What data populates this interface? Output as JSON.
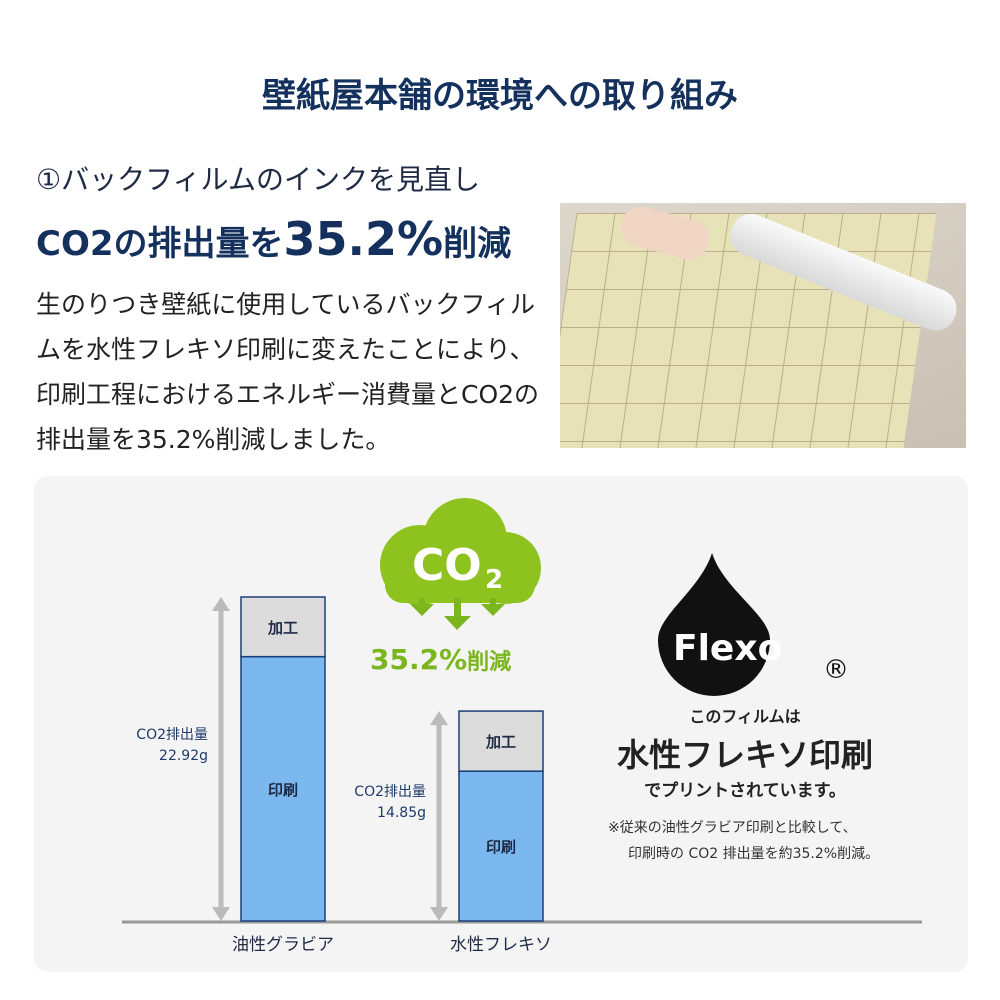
{
  "header": {
    "title": "壁紙屋本舗の環境への取り組み"
  },
  "section": {
    "subtitle": "①バックフィルムのインクを見直し",
    "headline_prefix": "CO2の排出量を",
    "headline_value": "35.2%",
    "headline_suffix": "削減",
    "body": "生のりつき壁紙に使用しているバックフィルムを水性フレキソ印刷に変えたことにより、印刷工程におけるエネルギー消費量とCO2の排出量を35.2%削減しました。"
  },
  "badge": {
    "co2_label": "CO2",
    "co2_main": "CO",
    "co2_sub": "2",
    "reduction_value": "35.2%",
    "reduction_suffix": "削減",
    "color": "#8dc21f"
  },
  "flexo": {
    "logo_text": "Flexo",
    "registered": "®",
    "line1": "このフィルムは",
    "line2": "水性フレキソ印刷",
    "line3": "でプリントされています。",
    "note1": "※従来の油性グラビア印刷と比較して、",
    "note2": "印刷時の CO2 排出量を約35.2%削減。"
  },
  "chart_data": {
    "type": "bar",
    "stacked": true,
    "categories": [
      "油性グラビア",
      "水性フレキソ"
    ],
    "series": [
      {
        "name": "印刷",
        "values": [
          18.7,
          10.6
        ],
        "color": "#7cb8f0"
      },
      {
        "name": "加工",
        "values": [
          4.22,
          4.25
        ],
        "color": "#dcdcdc"
      }
    ],
    "totals": [
      22.92,
      14.85
    ],
    "total_labels": [
      {
        "line1": "CO2排出量",
        "line2": "22.92g"
      },
      {
        "line1": "CO2排出量",
        "line2": "14.85g"
      }
    ],
    "unit": "g",
    "ylim": [
      0,
      22.92
    ],
    "grid": false
  }
}
